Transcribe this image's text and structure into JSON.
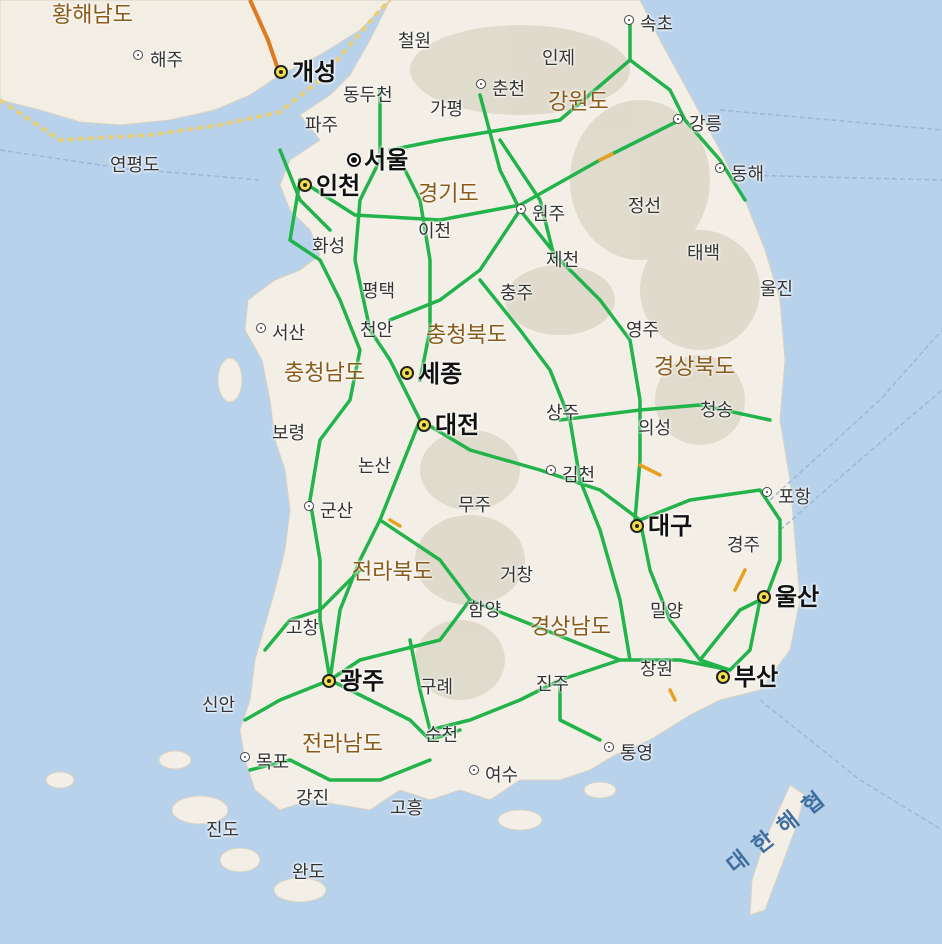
{
  "map": {
    "colors": {
      "sea": "#b9d2ec",
      "land": "#f3efe6",
      "mountain": "#d9d4c6",
      "highway": "#22b34a",
      "congestion": "#e8a020",
      "boundary": "#e6d17a",
      "province_label": "#8a5a1a",
      "sea_label": "#3f6f9f"
    },
    "provinces": [
      {
        "name": "황해남도"
      },
      {
        "name": "강원도"
      },
      {
        "name": "경기도"
      },
      {
        "name": "충청북도"
      },
      {
        "name": "충청남도"
      },
      {
        "name": "경상북도"
      },
      {
        "name": "전라북도"
      },
      {
        "name": "경상남도"
      },
      {
        "name": "전라남도"
      }
    ],
    "capital": {
      "name": "서울",
      "icon": "capital-marker-icon"
    },
    "metro_cities": [
      {
        "name": "개성"
      },
      {
        "name": "인천"
      },
      {
        "name": "세종"
      },
      {
        "name": "대전"
      },
      {
        "name": "대구"
      },
      {
        "name": "울산"
      },
      {
        "name": "부산"
      },
      {
        "name": "광주"
      }
    ],
    "marked_cities": [
      {
        "name": "해주"
      },
      {
        "name": "속초"
      },
      {
        "name": "춘천"
      },
      {
        "name": "강릉"
      },
      {
        "name": "동해"
      },
      {
        "name": "원주"
      },
      {
        "name": "서산"
      },
      {
        "name": "김천"
      },
      {
        "name": "포항"
      },
      {
        "name": "군산"
      },
      {
        "name": "통영"
      },
      {
        "name": "여수"
      },
      {
        "name": "목포"
      }
    ],
    "towns": [
      {
        "name": "철원"
      },
      {
        "name": "인제"
      },
      {
        "name": "동두천"
      },
      {
        "name": "가평"
      },
      {
        "name": "파주"
      },
      {
        "name": "연평도"
      },
      {
        "name": "정선"
      },
      {
        "name": "이천"
      },
      {
        "name": "화성"
      },
      {
        "name": "태백"
      },
      {
        "name": "제천"
      },
      {
        "name": "울진"
      },
      {
        "name": "평택"
      },
      {
        "name": "충주"
      },
      {
        "name": "천안"
      },
      {
        "name": "영주"
      },
      {
        "name": "청송"
      },
      {
        "name": "상주"
      },
      {
        "name": "의성"
      },
      {
        "name": "보령"
      },
      {
        "name": "논산"
      },
      {
        "name": "무주"
      },
      {
        "name": "경주"
      },
      {
        "name": "거창"
      },
      {
        "name": "밀양"
      },
      {
        "name": "함양"
      },
      {
        "name": "고창"
      },
      {
        "name": "창원"
      },
      {
        "name": "구례"
      },
      {
        "name": "진주"
      },
      {
        "name": "신안"
      },
      {
        "name": "순천"
      },
      {
        "name": "강진"
      },
      {
        "name": "고흥"
      },
      {
        "name": "진도"
      },
      {
        "name": "완도"
      }
    ],
    "sea_labels": [
      {
        "name": "대 한 해 협"
      }
    ]
  }
}
